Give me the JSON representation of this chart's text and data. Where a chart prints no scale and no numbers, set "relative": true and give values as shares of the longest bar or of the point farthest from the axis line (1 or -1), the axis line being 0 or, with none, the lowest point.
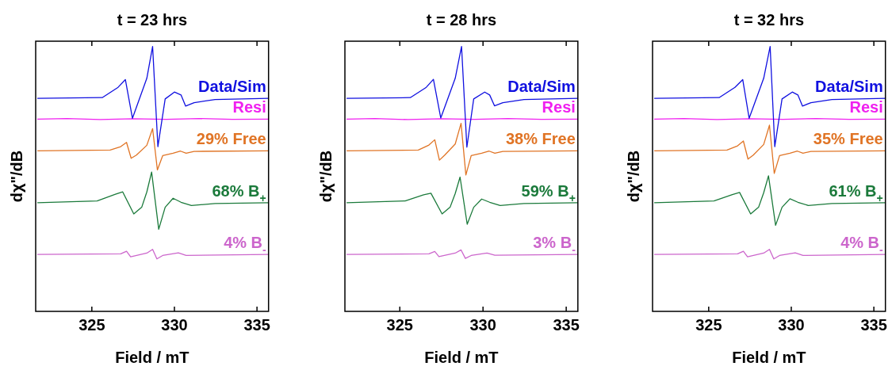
{
  "chart_data": [
    {
      "type": "line",
      "title": "t = 23 hrs",
      "xlabel": "Field / mT",
      "ylabel": "dχ\"/dB",
      "xlim": [
        321.6,
        335.7
      ],
      "xticks": [
        325,
        330,
        335
      ],
      "relative": true,
      "tick_labels": "x",
      "legend": false,
      "grid": false,
      "marker": "none",
      "series": [
        {
          "name": "Data/Sim",
          "color": "#1010e0",
          "x": [
            321.7,
            325.63,
            326.59,
            327.03,
            327.46,
            328.33,
            328.68,
            329.0,
            329.44,
            330.0,
            330.4,
            330.68,
            331.19,
            332.46,
            335.7
          ],
          "values": [
            0.804,
            0.807,
            0.846,
            0.875,
            0.729,
            0.88,
            1.0,
            0.622,
            0.802,
            0.828,
            0.817,
            0.775,
            0.788,
            0.8,
            0.804
          ]
        },
        {
          "name": "Resi",
          "color": "#f020f0",
          "x": [
            321.7,
            323.5,
            325.5,
            327.5,
            329.5,
            331.5,
            333.5,
            335.7
          ],
          "values": [
            0.726,
            0.728,
            0.724,
            0.727,
            0.725,
            0.728,
            0.725,
            0.726
          ]
        },
        {
          "name": "29% Free",
          "color": "#e07425",
          "x": [
            321.7,
            326.11,
            326.75,
            327.1,
            327.38,
            327.7,
            328.33,
            328.68,
            328.97,
            329.29,
            329.92,
            330.37,
            330.71,
            331.19,
            335.7
          ],
          "values": [
            0.606,
            0.609,
            0.622,
            0.638,
            0.578,
            0.59,
            0.627,
            0.69,
            0.534,
            0.588,
            0.597,
            0.605,
            0.597,
            0.604,
            0.606
          ]
        },
        {
          "name": "68% B$_{+}$",
          "color": "#1b7a3b",
          "x": [
            321.7,
            325.32,
            326.43,
            326.87,
            327.54,
            328.02,
            328.33,
            328.62,
            329.05,
            329.44,
            329.92,
            330.4,
            331.03,
            332.46,
            335.7
          ],
          "values": [
            0.41,
            0.417,
            0.442,
            0.451,
            0.368,
            0.393,
            0.451,
            0.526,
            0.31,
            0.393,
            0.427,
            0.412,
            0.4,
            0.407,
            0.41
          ]
        },
        {
          "name": "4% B$_{-}$",
          "color": "#cc66cc",
          "x": [
            321.7,
            326.75,
            327.1,
            327.35,
            328.33,
            328.68,
            328.94,
            329.29,
            330.24,
            330.71,
            335.7
          ],
          "values": [
            0.215,
            0.217,
            0.227,
            0.206,
            0.22,
            0.234,
            0.198,
            0.211,
            0.221,
            0.211,
            0.215
          ]
        }
      ]
    },
    {
      "type": "line",
      "title": "t = 28 hrs",
      "xlabel": "Field / mT",
      "ylabel": "dχ\"/dB",
      "xlim": [
        321.7,
        335.7
      ],
      "xticks": [
        325,
        330,
        335
      ],
      "relative": true,
      "tick_labels": "x",
      "legend": false,
      "grid": false,
      "marker": "none",
      "series": [
        {
          "name": "Data/Sim",
          "color": "#1010e0",
          "x": [
            321.8,
            325.63,
            326.59,
            327.02,
            327.46,
            328.33,
            328.71,
            329.03,
            329.44,
            330.1,
            330.4,
            330.69,
            331.19,
            332.46,
            335.7
          ],
          "values": [
            0.804,
            0.807,
            0.846,
            0.876,
            0.73,
            0.88,
            1.0,
            0.62,
            0.802,
            0.828,
            0.817,
            0.776,
            0.788,
            0.8,
            0.804
          ]
        },
        {
          "name": "Resi",
          "color": "#f020f0",
          "x": [
            321.8,
            323.5,
            325.5,
            327.5,
            329.5,
            331.5,
            333.5,
            335.7
          ],
          "values": [
            0.726,
            0.728,
            0.724,
            0.727,
            0.725,
            0.728,
            0.725,
            0.726
          ]
        },
        {
          "name": "38% Free",
          "color": "#e07425",
          "x": [
            321.8,
            326.11,
            326.75,
            327.1,
            327.38,
            327.7,
            328.33,
            328.68,
            328.97,
            329.29,
            329.92,
            330.37,
            330.71,
            331.19,
            335.7
          ],
          "values": [
            0.606,
            0.609,
            0.628,
            0.648,
            0.571,
            0.59,
            0.632,
            0.71,
            0.515,
            0.588,
            0.597,
            0.605,
            0.597,
            0.604,
            0.606
          ]
        },
        {
          "name": "59% B$_{+}$",
          "color": "#1b7a3b",
          "x": [
            321.8,
            325.32,
            326.43,
            326.87,
            327.54,
            328.02,
            328.33,
            328.62,
            329.05,
            329.44,
            329.92,
            330.4,
            331.03,
            332.46,
            335.7
          ],
          "values": [
            0.41,
            0.417,
            0.44,
            0.446,
            0.368,
            0.393,
            0.445,
            0.507,
            0.329,
            0.393,
            0.424,
            0.412,
            0.4,
            0.407,
            0.41
          ]
        },
        {
          "name": "3% B$_{-}$",
          "color": "#cc66cc",
          "x": [
            321.8,
            326.75,
            327.1,
            327.35,
            328.33,
            328.68,
            328.94,
            329.29,
            330.24,
            330.71,
            335.7
          ],
          "values": [
            0.215,
            0.217,
            0.226,
            0.207,
            0.22,
            0.232,
            0.2,
            0.211,
            0.22,
            0.212,
            0.215
          ]
        }
      ]
    },
    {
      "type": "line",
      "title": "t = 32 hrs",
      "xlabel": "Field / mT",
      "ylabel": "dχ\"/dB",
      "xlim": [
        321.6,
        335.7
      ],
      "xticks": [
        325,
        330,
        335
      ],
      "relative": true,
      "tick_labels": "x",
      "legend": false,
      "grid": false,
      "marker": "none",
      "series": [
        {
          "name": "Data/Sim",
          "color": "#1010e0",
          "x": [
            321.7,
            325.63,
            326.59,
            327.06,
            327.45,
            328.33,
            328.72,
            329.0,
            329.44,
            330.06,
            330.4,
            330.68,
            331.19,
            332.46,
            335.7
          ],
          "values": [
            0.804,
            0.807,
            0.846,
            0.875,
            0.729,
            0.88,
            1.0,
            0.622,
            0.802,
            0.828,
            0.817,
            0.775,
            0.788,
            0.8,
            0.804
          ]
        },
        {
          "name": "Resi",
          "color": "#f020f0",
          "x": [
            321.7,
            323.5,
            325.5,
            327.5,
            329.5,
            331.5,
            333.5,
            335.7
          ],
          "values": [
            0.726,
            0.728,
            0.724,
            0.727,
            0.725,
            0.728,
            0.725,
            0.726
          ]
        },
        {
          "name": "35% Free",
          "color": "#e07425",
          "x": [
            321.7,
            326.11,
            326.75,
            327.1,
            327.38,
            327.7,
            328.33,
            328.68,
            328.97,
            329.29,
            329.92,
            330.37,
            330.71,
            331.19,
            335.7
          ],
          "values": [
            0.606,
            0.609,
            0.625,
            0.643,
            0.575,
            0.59,
            0.63,
            0.703,
            0.521,
            0.588,
            0.597,
            0.605,
            0.597,
            0.604,
            0.606
          ]
        },
        {
          "name": "61% B$_{+}$",
          "color": "#1b7a3b",
          "x": [
            321.7,
            325.32,
            326.43,
            326.87,
            327.54,
            328.02,
            328.33,
            328.62,
            329.05,
            329.44,
            329.92,
            330.4,
            331.03,
            332.46,
            335.7
          ],
          "values": [
            0.41,
            0.417,
            0.441,
            0.449,
            0.368,
            0.393,
            0.448,
            0.512,
            0.325,
            0.393,
            0.425,
            0.412,
            0.4,
            0.407,
            0.41
          ]
        },
        {
          "name": "4% B$_{-}$",
          "color": "#cc66cc",
          "x": [
            321.7,
            326.75,
            327.1,
            327.35,
            328.33,
            328.68,
            328.94,
            329.29,
            330.24,
            330.71,
            335.7
          ],
          "values": [
            0.215,
            0.217,
            0.227,
            0.206,
            0.22,
            0.234,
            0.198,
            0.211,
            0.221,
            0.211,
            0.215
          ]
        }
      ]
    }
  ]
}
